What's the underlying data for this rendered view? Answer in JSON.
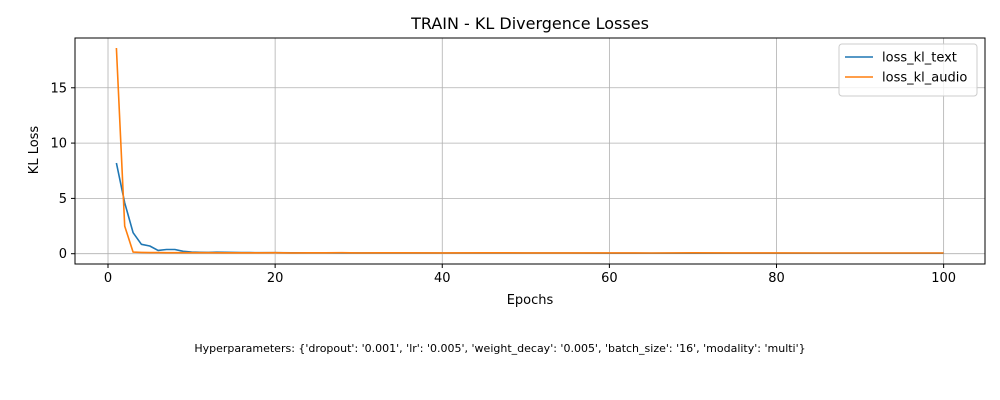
{
  "chart_data": {
    "type": "line",
    "title": "TRAIN - KL Divergence Losses",
    "xlabel": "Epochs",
    "ylabel": "KL Loss",
    "xlim": [
      -3.95,
      104.95
    ],
    "ylim": [
      -0.93,
      19.5
    ],
    "xticks": [
      0,
      20,
      40,
      60,
      80,
      100
    ],
    "yticks": [
      0,
      5,
      10,
      15
    ],
    "grid": true,
    "legend_position": "top-right",
    "series": [
      {
        "name": "loss_kl_text",
        "color": "#1f77b4",
        "x": [
          1,
          2,
          3,
          4,
          5,
          6,
          7,
          8,
          9,
          10,
          11,
          12,
          13,
          14,
          15,
          16,
          17,
          18,
          19,
          20,
          22,
          24,
          26,
          28,
          30,
          35,
          40,
          45,
          50,
          55,
          60,
          65,
          70,
          75,
          80,
          85,
          90,
          95,
          100
        ],
        "y": [
          8.2,
          4.6,
          1.9,
          0.85,
          0.7,
          0.3,
          0.38,
          0.38,
          0.22,
          0.15,
          0.13,
          0.12,
          0.14,
          0.13,
          0.12,
          0.1,
          0.1,
          0.09,
          0.09,
          0.09,
          0.08,
          0.08,
          0.08,
          0.07,
          0.07,
          0.07,
          0.06,
          0.06,
          0.06,
          0.06,
          0.05,
          0.05,
          0.05,
          0.05,
          0.05,
          0.05,
          0.05,
          0.05,
          0.05
        ]
      },
      {
        "name": "loss_kl_audio",
        "color": "#ff7f0e",
        "x": [
          1,
          2,
          3,
          4,
          5,
          6,
          7,
          8,
          9,
          10,
          12,
          14,
          16,
          18,
          20,
          22,
          24,
          26,
          28,
          30,
          35,
          40,
          45,
          50,
          55,
          60,
          65,
          70,
          75,
          80,
          85,
          90,
          95,
          100
        ],
        "y": [
          18.6,
          2.5,
          0.15,
          0.12,
          0.1,
          0.1,
          0.09,
          0.09,
          0.09,
          0.09,
          0.09,
          0.08,
          0.08,
          0.08,
          0.09,
          0.07,
          0.08,
          0.08,
          0.09,
          0.07,
          0.08,
          0.07,
          0.08,
          0.07,
          0.07,
          0.07,
          0.06,
          0.08,
          0.07,
          0.07,
          0.06,
          0.06,
          0.06,
          0.06
        ]
      }
    ]
  },
  "caption": "Hyperparameters: {'dropout': '0.001', 'lr': '0.005', 'weight_decay': '0.005', 'batch_size': '16', 'modality': 'multi'}"
}
